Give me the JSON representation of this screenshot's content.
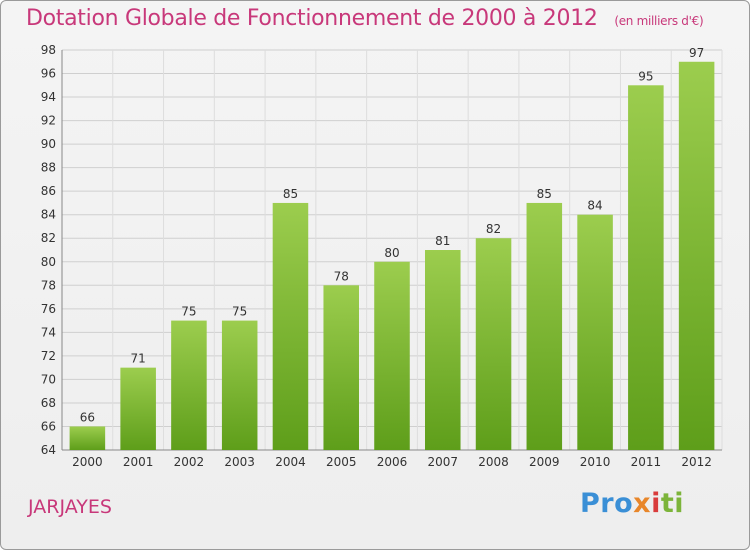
{
  "header": {
    "title": "Dotation Globale de Fonctionnement de 2000 à 2012",
    "subtitle": "(en milliers d'€)"
  },
  "footer": {
    "commune": "JARJAYES",
    "logo": [
      "Pro",
      "x",
      "i",
      "ti"
    ]
  },
  "colors": {
    "title": "#c8387a",
    "bar_top": "#9ccd4e",
    "bar_bottom": "#5e9e1a"
  },
  "chart_data": {
    "type": "bar",
    "title": "Dotation Globale de Fonctionnement de 2000 à 2012",
    "subtitle": "(en milliers d'€)",
    "xlabel": "",
    "ylabel": "",
    "categories": [
      "2000",
      "2001",
      "2002",
      "2003",
      "2004",
      "2005",
      "2006",
      "2007",
      "2008",
      "2009",
      "2010",
      "2011",
      "2012"
    ],
    "values": [
      66,
      71,
      75,
      75,
      85,
      78,
      80,
      81,
      82,
      85,
      84,
      95,
      97
    ],
    "data_labels": [
      "66",
      "71",
      "75",
      "75",
      "85",
      "78",
      "80",
      "81",
      "82",
      "85",
      "84",
      "95",
      "97"
    ],
    "ylim": [
      64,
      98
    ],
    "yticks": [
      "64",
      "66",
      "68",
      "70",
      "72",
      "74",
      "76",
      "78",
      "80",
      "82",
      "84",
      "86",
      "88",
      "90",
      "92",
      "94",
      "96",
      "98"
    ],
    "grid": true,
    "legend": "none"
  }
}
